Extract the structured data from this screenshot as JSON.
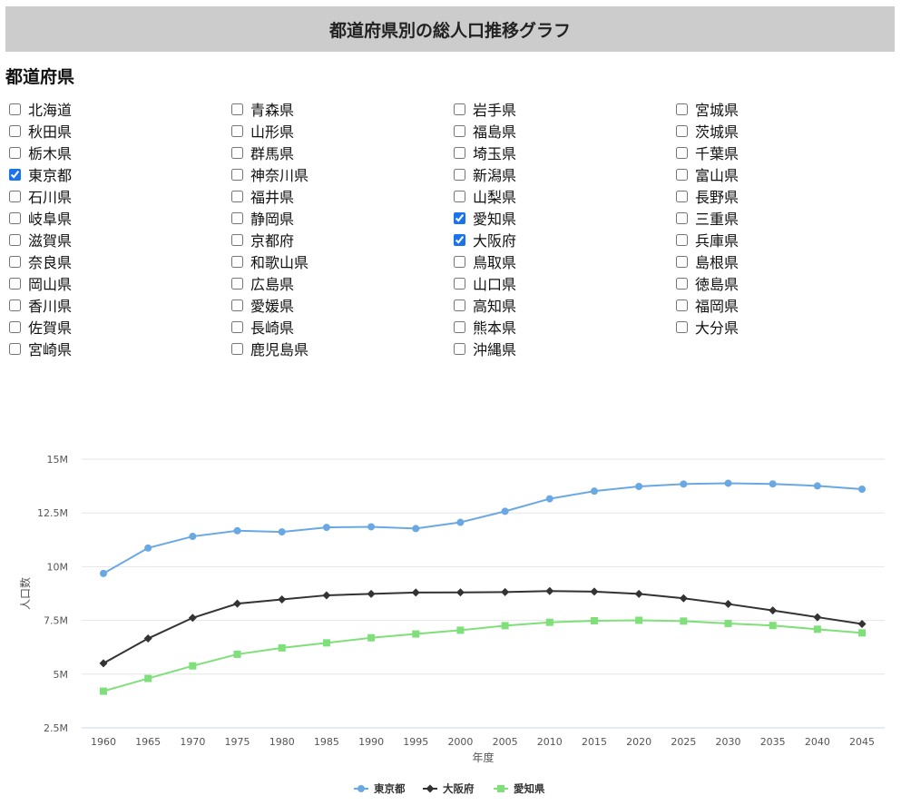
{
  "header": {
    "title": "都道府県別の総人口推移グラフ"
  },
  "section": {
    "title": "都道府県"
  },
  "prefectures": [
    {
      "name": "北海道",
      "checked": false
    },
    {
      "name": "青森県",
      "checked": false
    },
    {
      "name": "岩手県",
      "checked": false
    },
    {
      "name": "宮城県",
      "checked": false
    },
    {
      "name": "秋田県",
      "checked": false
    },
    {
      "name": "山形県",
      "checked": false
    },
    {
      "name": "福島県",
      "checked": false
    },
    {
      "name": "茨城県",
      "checked": false
    },
    {
      "name": "栃木県",
      "checked": false
    },
    {
      "name": "群馬県",
      "checked": false
    },
    {
      "name": "埼玉県",
      "checked": false
    },
    {
      "name": "千葉県",
      "checked": false
    },
    {
      "name": "東京都",
      "checked": true
    },
    {
      "name": "神奈川県",
      "checked": false
    },
    {
      "name": "新潟県",
      "checked": false
    },
    {
      "name": "富山県",
      "checked": false
    },
    {
      "name": "石川県",
      "checked": false
    },
    {
      "name": "福井県",
      "checked": false
    },
    {
      "name": "山梨県",
      "checked": false
    },
    {
      "name": "長野県",
      "checked": false
    },
    {
      "name": "岐阜県",
      "checked": false
    },
    {
      "name": "静岡県",
      "checked": false
    },
    {
      "name": "愛知県",
      "checked": true
    },
    {
      "name": "三重県",
      "checked": false
    },
    {
      "name": "滋賀県",
      "checked": false
    },
    {
      "name": "京都府",
      "checked": false
    },
    {
      "name": "大阪府",
      "checked": true
    },
    {
      "name": "兵庫県",
      "checked": false
    },
    {
      "name": "奈良県",
      "checked": false
    },
    {
      "name": "和歌山県",
      "checked": false
    },
    {
      "name": "鳥取県",
      "checked": false
    },
    {
      "name": "島根県",
      "checked": false
    },
    {
      "name": "岡山県",
      "checked": false
    },
    {
      "name": "広島県",
      "checked": false
    },
    {
      "name": "山口県",
      "checked": false
    },
    {
      "name": "徳島県",
      "checked": false
    },
    {
      "name": "香川県",
      "checked": false
    },
    {
      "name": "愛媛県",
      "checked": false
    },
    {
      "name": "高知県",
      "checked": false
    },
    {
      "name": "福岡県",
      "checked": false
    },
    {
      "name": "佐賀県",
      "checked": false
    },
    {
      "name": "長崎県",
      "checked": false
    },
    {
      "name": "熊本県",
      "checked": false
    },
    {
      "name": "大分県",
      "checked": false
    },
    {
      "name": "宮崎県",
      "checked": false
    },
    {
      "name": "鹿児島県",
      "checked": false
    },
    {
      "name": "沖縄県",
      "checked": false
    }
  ],
  "chart_data": {
    "type": "line",
    "title": "",
    "xlabel": "年度",
    "ylabel": "人口数",
    "ylim": [
      2500000,
      15000000
    ],
    "y_ticks": [
      2500000,
      5000000,
      7500000,
      10000000,
      12500000,
      15000000
    ],
    "y_tick_labels": [
      "2.5M",
      "5M",
      "7.5M",
      "10M",
      "12.5M",
      "15M"
    ],
    "grid": true,
    "legend_position": "bottom-center",
    "x": [
      1960,
      1965,
      1970,
      1975,
      1980,
      1985,
      1990,
      1995,
      2000,
      2005,
      2010,
      2015,
      2020,
      2025,
      2030,
      2035,
      2040,
      2045
    ],
    "series": [
      {
        "name": "東京都",
        "color": "#6aa8e4",
        "marker": "circle",
        "values": [
          9683802,
          10869244,
          11408071,
          11673554,
          11618281,
          11829363,
          11855563,
          11773605,
          12064101,
          12576601,
          13159388,
          13515271,
          13732951,
          13845936,
          13882538,
          13851782,
          13758624,
          13606683
        ]
      },
      {
        "name": "大阪府",
        "color": "#333333",
        "marker": "diamond",
        "values": [
          5504746,
          6657189,
          7620480,
          8278925,
          8473446,
          8668095,
          8734516,
          8797268,
          8805081,
          8817166,
          8865245,
          8839469,
          8732289,
          8526202,
          8262029,
          7962983,
          7649229,
          7335352
        ]
      },
      {
        "name": "愛知県",
        "color": "#7fe07a",
        "marker": "square",
        "values": [
          4206313,
          4798653,
          5386163,
          5923569,
          6221638,
          6455172,
          6690603,
          6868336,
          7043300,
          7254704,
          7410719,
          7483128,
          7505000,
          7468000,
          7359000,
          7263000,
          7088000,
          6920000
        ]
      }
    ]
  }
}
